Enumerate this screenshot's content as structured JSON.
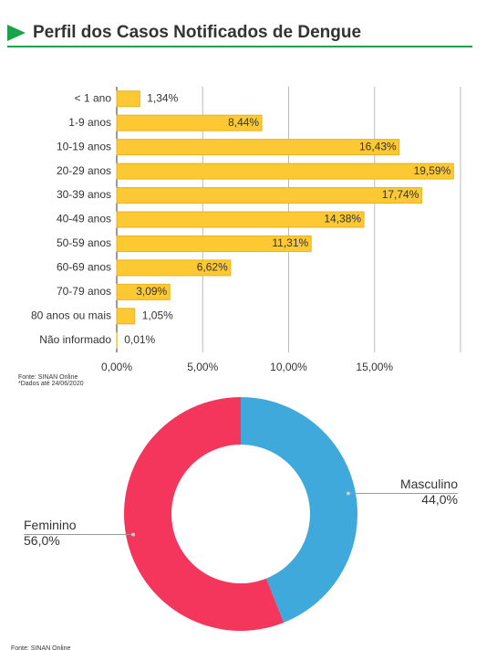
{
  "title": "Perfil dos Casos Notificados de Dengue",
  "chart_data": [
    {
      "type": "bar",
      "orientation": "horizontal",
      "categories": [
        "< 1 ano",
        "1-9 anos",
        "10-19 anos",
        "20-29 anos",
        "30-39 anos",
        "40-49 anos",
        "50-59 anos",
        "60-69 anos",
        "70-79 anos",
        "80 anos ou mais",
        "Não informado"
      ],
      "values": [
        1.34,
        8.44,
        16.43,
        19.59,
        17.74,
        14.38,
        11.31,
        6.62,
        3.09,
        1.05,
        0.01
      ],
      "value_labels": [
        "1,34%",
        "8,44%",
        "16,43%",
        "19,59%",
        "17,74%",
        "14,38%",
        "11,31%",
        "6,62%",
        "3,09%",
        "1,05%",
        "0,01%"
      ],
      "color": "#fcc934",
      "xlim": [
        0,
        20
      ],
      "xticks": [
        {
          "value": 0,
          "label": "0,00%"
        },
        {
          "value": 5,
          "label": "5,00%"
        },
        {
          "value": 10,
          "label": "10,00%"
        },
        {
          "value": 15,
          "label": "15,00%"
        }
      ],
      "grid": true,
      "notes": [
        "Fonte: SINAN Online",
        "*Dados até 24/06/2020"
      ]
    },
    {
      "type": "pie",
      "donut": true,
      "categories": [
        "Masculino",
        "Feminino"
      ],
      "values": [
        44.0,
        56.0
      ],
      "value_labels": [
        "44,0%",
        "56,0%"
      ],
      "colors": [
        "#3fa9dc",
        "#f5365c"
      ],
      "notes": [
        "Fonte: SINAN Online"
      ]
    }
  ]
}
